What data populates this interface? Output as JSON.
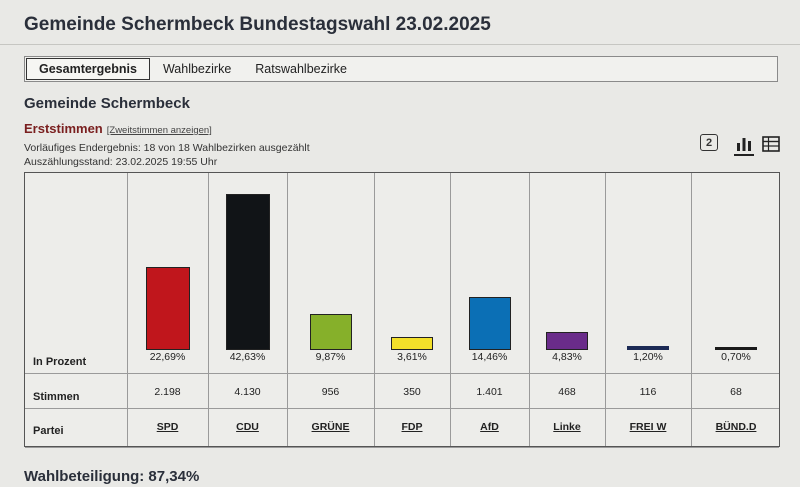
{
  "page": {
    "title": "Gemeinde Schermbeck Bundestagswahl 23.02.2025"
  },
  "tabs": [
    "Gesamtergebnis",
    "Wahlbezirke",
    "Ratswahlbezirke"
  ],
  "section": {
    "title": "Gemeinde Schermbeck",
    "vote_type": "Erststimmen",
    "toggle_link": "[Zweitstimmen anzeigen]",
    "status_line": "Vorläufiges Endergebnis: 18 von 18 Wahlbezirken ausgezählt",
    "count_time": "Auszählungsstand: 23.02.2025 19:55 Uhr"
  },
  "icons": {
    "number_label": "2"
  },
  "row_labels": {
    "percent": "In Prozent",
    "votes": "Stimmen",
    "party": "Partei"
  },
  "chart_data": {
    "type": "bar",
    "title": "Erststimmen",
    "ylabel": "In Prozent",
    "ylim": [
      0,
      45
    ],
    "categories": [
      "SPD",
      "CDU",
      "GRÜNE",
      "FDP",
      "AfD",
      "Linke",
      "FREI W",
      "BÜND.D"
    ],
    "values": [
      22.69,
      42.63,
      9.87,
      3.61,
      14.46,
      4.83,
      1.2,
      0.7
    ],
    "percent_labels": [
      "22,69%",
      "42,63%",
      "9,87%",
      "3,61%",
      "14,46%",
      "4,83%",
      "1,20%",
      "0,70%"
    ],
    "votes": [
      "2.198",
      "4.130",
      "956",
      "350",
      "1.401",
      "468",
      "116",
      "68"
    ],
    "colors": [
      "#c0161c",
      "#111417",
      "#86b02a",
      "#f3e02a",
      "#0b6fb5",
      "#6a2c8a",
      "#1c2a55",
      "#1a1a1a"
    ]
  },
  "turnout": "Wahlbeteiligung: 87,34%"
}
